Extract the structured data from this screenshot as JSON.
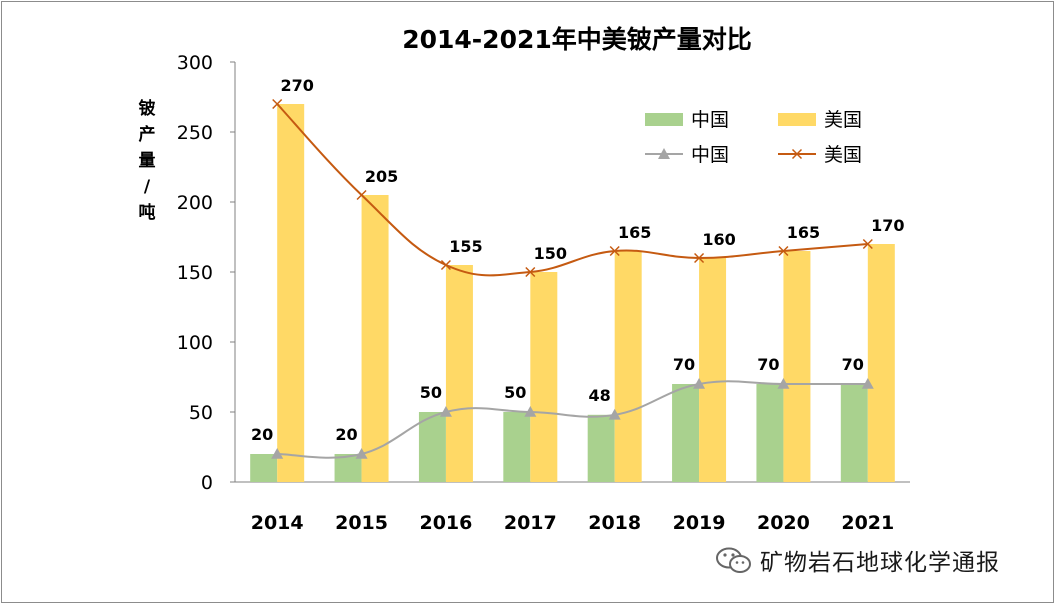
{
  "chart_data": {
    "type": "bar+line",
    "title": "2014-2021年中美铍产量对比",
    "ylabel": "铍产量/吨",
    "xlabel": "",
    "categories": [
      "2014",
      "2015",
      "2016",
      "2017",
      "2018",
      "2019",
      "2020",
      "2021"
    ],
    "ylim": [
      0,
      300
    ],
    "yticks": [
      0,
      50,
      100,
      150,
      200,
      250,
      300
    ],
    "grid": false,
    "legend_position": "top-right",
    "series": [
      {
        "name": "中国",
        "kind": "bar",
        "color": "#a9d18e",
        "values": [
          20,
          20,
          50,
          50,
          48,
          70,
          70,
          70
        ]
      },
      {
        "name": "美国",
        "kind": "bar",
        "color": "#ffd966",
        "values": [
          270,
          205,
          155,
          150,
          165,
          160,
          165,
          170
        ]
      },
      {
        "name": "中国",
        "kind": "line",
        "marker": "triangle",
        "color": "#a5a5a5",
        "values": [
          20,
          20,
          50,
          50,
          48,
          70,
          70,
          70
        ]
      },
      {
        "name": "美国",
        "kind": "line",
        "marker": "x",
        "color": "#c55a11",
        "values": [
          270,
          205,
          155,
          150,
          165,
          160,
          165,
          170
        ]
      }
    ]
  },
  "watermark": {
    "icon": "wechat-icon",
    "text": "矿物岩石地球化学通报"
  }
}
